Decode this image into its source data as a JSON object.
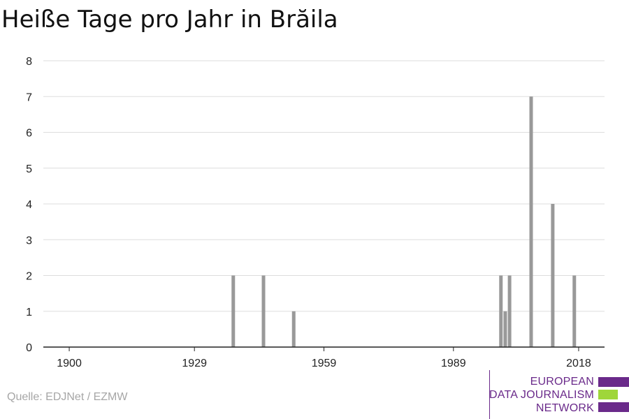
{
  "title": "Heiße Tage pro Jahr in Brăila",
  "source": "Quelle: EDJNet / EZMW",
  "logo": {
    "lines": [
      "EUROPEAN",
      "DATA JOURNALISM",
      "NETWORK"
    ],
    "colors": {
      "purple": "#6a2a8a",
      "green": "#9fd63a"
    }
  },
  "chart_data": {
    "type": "bar",
    "title": "Heiße Tage pro Jahr in Brăila",
    "xlabel": "",
    "ylabel": "",
    "x_ticks": [
      1900,
      1929,
      1959,
      1989,
      2018
    ],
    "y_ticks": [
      0,
      1,
      2,
      3,
      4,
      5,
      6,
      7,
      8
    ],
    "xlim": [
      1894,
      2024
    ],
    "ylim": [
      0,
      8
    ],
    "grid": true,
    "bar_color": "#999999",
    "bars": [
      {
        "year": 1938,
        "value": 2
      },
      {
        "year": 1945,
        "value": 2
      },
      {
        "year": 1952,
        "value": 1
      },
      {
        "year": 2000,
        "value": 2
      },
      {
        "year": 2001,
        "value": 1
      },
      {
        "year": 2002,
        "value": 2
      },
      {
        "year": 2007,
        "value": 7
      },
      {
        "year": 2012,
        "value": 4
      },
      {
        "year": 2017,
        "value": 2
      }
    ]
  }
}
